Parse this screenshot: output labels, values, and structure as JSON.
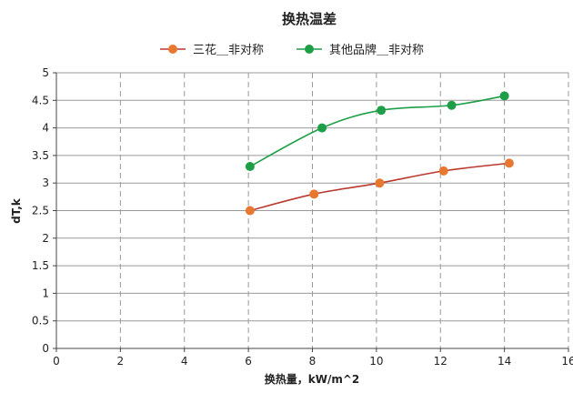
{
  "chart_data": {
    "type": "line",
    "title": "换热温差",
    "xlabel": "换热量，kW/m^2",
    "ylabel": "dT,k",
    "xlim": [
      0,
      16
    ],
    "ylim": [
      0,
      5
    ],
    "x_ticks": [
      "0",
      "2",
      "4",
      "6",
      "8",
      "10",
      "12",
      "14",
      "16"
    ],
    "y_ticks": [
      "0",
      "0.5",
      "1",
      "1.5",
      "2",
      "2.5",
      "3",
      "3.5",
      "4",
      "4.5",
      "5"
    ],
    "grid": {
      "x": "dashed",
      "y": "solid"
    },
    "legend_position": "top-center",
    "series": [
      {
        "name": "三花＿非对称",
        "color": "#B83A2E",
        "marker_color": "#E8782F",
        "points": [
          {
            "x": 6.05,
            "y": 2.5
          },
          {
            "x": 8.05,
            "y": 2.8
          },
          {
            "x": 10.1,
            "y": 3.0
          },
          {
            "x": 12.1,
            "y": 3.22
          },
          {
            "x": 14.15,
            "y": 3.36
          }
        ]
      },
      {
        "name": "其他品牌＿非对称",
        "color": "#1E9E46",
        "marker_color": "#1E9E46",
        "points": [
          {
            "x": 6.05,
            "y": 3.3
          },
          {
            "x": 8.3,
            "y": 4.0
          },
          {
            "x": 10.15,
            "y": 4.32
          },
          {
            "x": 12.35,
            "y": 4.41
          },
          {
            "x": 14.0,
            "y": 4.58
          }
        ]
      }
    ]
  }
}
